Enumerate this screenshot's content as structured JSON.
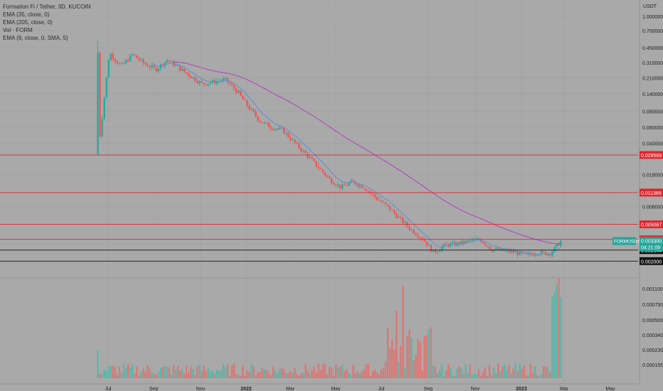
{
  "legend": {
    "title": "Formation Fi / Tether, 3D, KUCOIN",
    "ema35": "EMA (35, close, 0)",
    "ema205": "EMA (205, close, 0)",
    "vol": "Vol · FORM",
    "ema9": "EMA (9, close, 0, SMA, 5)"
  },
  "colors": {
    "background": "#a9a9a9",
    "up": "#26a69a",
    "down": "#ef5350",
    "ema_short": "#5b8fd6",
    "ema_long": "#b03fc0",
    "hline_red": "#e0262e",
    "hline_black": "#111111",
    "grid": "#9e9e9e"
  },
  "chart_data": {
    "type": "candlestick",
    "symbol": "FORMUSDT",
    "timeframe": "3D",
    "exchange": "KUCOIN",
    "price_axis_unit": "USDT",
    "price_scale": "log",
    "price_ticks": [
      "1.000000",
      "0.700000",
      "0.450000",
      "0.310000",
      "0.210000",
      "0.140000",
      "0.090000",
      "0.060000",
      "0.040000",
      "0.018000",
      "0.008000",
      "0.003100"
    ],
    "price_ticks_numeric": [
      1.0,
      0.7,
      0.45,
      0.31,
      0.21,
      0.14,
      0.09,
      0.06,
      0.04,
      0.018,
      0.008,
      0.0031
    ],
    "volume_ticks": [
      "0.001100",
      "0.000750",
      "0.000500",
      "0.000340",
      "0.000230",
      "0.000155"
    ],
    "x_labels": [
      "Jul",
      "Sep",
      "Nov",
      "2022",
      "Mar",
      "May",
      "Jul",
      "Sep",
      "Nov",
      "2023",
      "Mar",
      "May"
    ],
    "horizontal_lines": [
      {
        "price": 0.029569,
        "label": "0.029569",
        "color": "red"
      },
      {
        "price": 0.011389,
        "label": "0.011389",
        "color": "red"
      },
      {
        "price": 0.005087,
        "label": "0.005087",
        "color": "red"
      },
      {
        "price": 0.003475,
        "label": "0.003475",
        "color": "red"
      },
      {
        "price": 0.002644,
        "label": "0.002644",
        "color": "black"
      },
      {
        "price": 0.002,
        "label": "0.002000",
        "color": "black"
      }
    ],
    "current": {
      "symbol_label": "FORMUSDT",
      "price": "0.003300",
      "countdown": "04:21:09"
    },
    "price_path": [
      [
        "Jul",
        0.03
      ],
      [
        "Jul",
        0.4
      ],
      [
        "Jul",
        0.28
      ],
      [
        "Jul",
        0.38
      ],
      [
        "Jul",
        0.3
      ],
      [
        "Sep",
        0.26
      ],
      [
        "Sep",
        0.33
      ],
      [
        "Sep",
        0.27
      ],
      [
        "Sep",
        0.22
      ],
      [
        "Nov",
        0.18
      ],
      [
        "Nov",
        0.19
      ],
      [
        "Nov",
        0.2
      ],
      [
        "Nov",
        0.15
      ],
      [
        "Nov",
        0.1
      ],
      [
        "2022",
        0.07
      ],
      [
        "2022",
        0.06
      ],
      [
        "2022",
        0.055
      ],
      [
        "2022",
        0.04
      ],
      [
        "Mar",
        0.03
      ],
      [
        "Mar",
        0.022
      ],
      [
        "Mar",
        0.016
      ],
      [
        "Mar",
        0.013
      ],
      [
        "May",
        0.015
      ],
      [
        "May",
        0.013
      ],
      [
        "May",
        0.01
      ],
      [
        "May",
        0.008
      ],
      [
        "Jul",
        0.006
      ],
      [
        "Jul",
        0.0045
      ],
      [
        "Jul",
        0.0036
      ],
      [
        "Jul",
        0.0025
      ],
      [
        "Sep",
        0.003
      ],
      [
        "Sep",
        0.0031
      ],
      [
        "Sep",
        0.0033
      ],
      [
        "Sep",
        0.0035
      ],
      [
        "Nov",
        0.0027
      ],
      [
        "Nov",
        0.0026
      ],
      [
        "Nov",
        0.0025
      ],
      [
        "2023",
        0.0023
      ],
      [
        "2023",
        0.0025
      ],
      [
        "2023",
        0.0024
      ],
      [
        "Mar",
        0.0033
      ]
    ]
  }
}
